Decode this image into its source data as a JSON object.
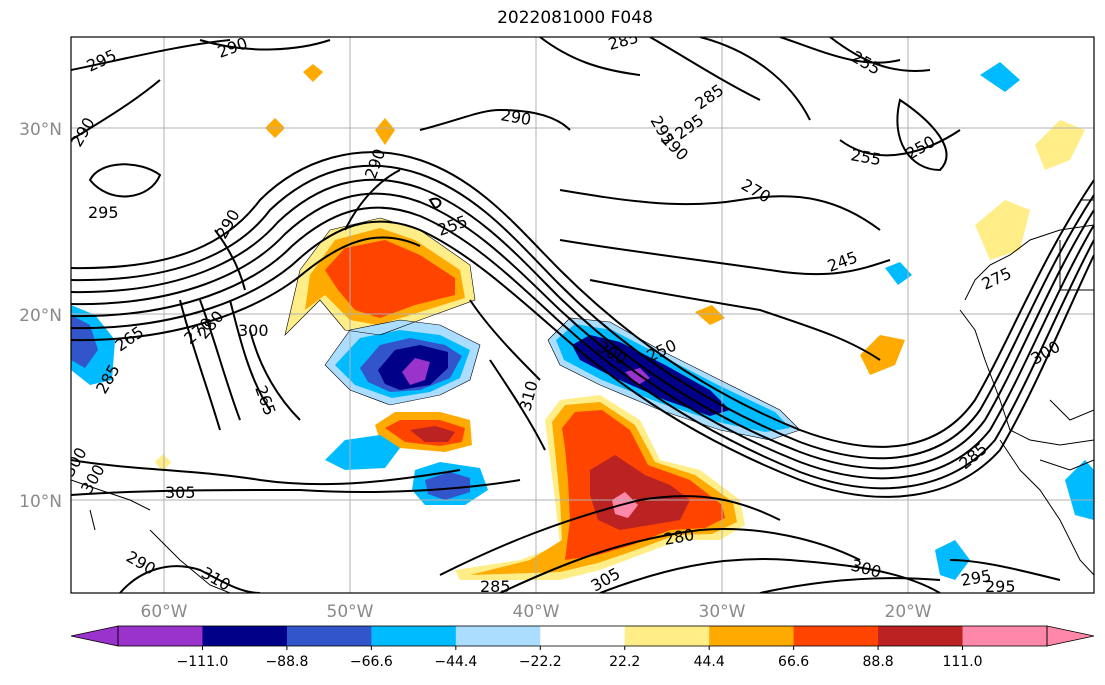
{
  "title": "2022081000 F048",
  "map": {
    "lat_labels": [
      "30°N",
      "20°N",
      "10°N"
    ],
    "lon_labels": [
      "60°W",
      "50°W",
      "40°W",
      "30°W",
      "20°W"
    ],
    "contour_labels": [
      "295",
      "290",
      "285",
      "255",
      "290",
      "295",
      "290",
      "285",
      "295",
      "290",
      "255",
      "250",
      "270",
      "295",
      "290",
      "255",
      "265",
      "275",
      "245",
      "285",
      "270",
      "280",
      "300",
      "250",
      "310",
      "265",
      "300",
      "300",
      "300",
      "305",
      "290",
      "280",
      "285",
      "305",
      "300",
      "295",
      "310",
      "285",
      "295",
      "290",
      "300"
    ]
  },
  "colorbar": {
    "colors": [
      "#9933cc",
      "#000088",
      "#3355cc",
      "#00bbff",
      "#aaddff",
      "#ffffff",
      "#ffee88",
      "#ffaa00",
      "#ff4400",
      "#bb2222",
      "#ff88aa"
    ],
    "tick_labels": [
      "−111.0",
      "−88.8",
      "−66.6",
      "−44.4",
      "−22.2",
      "22.2",
      "44.4",
      "66.6",
      "88.8",
      "111.0"
    ]
  }
}
